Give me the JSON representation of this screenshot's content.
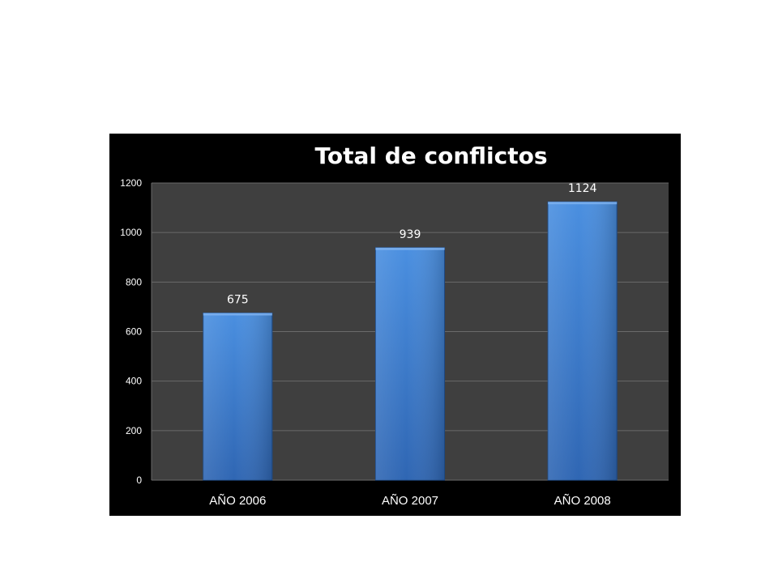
{
  "chart_data": {
    "type": "bar",
    "title": "Total de conflictos",
    "categories": [
      "AÑO 2006",
      "AÑO 2007",
      "AÑO 2008"
    ],
    "values": [
      675,
      939,
      1124
    ],
    "data_labels": [
      "675",
      "939",
      "1124"
    ],
    "y_ticks": [
      "0",
      "200",
      "400",
      "600",
      "800",
      "1000",
      "1200"
    ],
    "ylim": [
      0,
      1200
    ],
    "xlabel": "",
    "ylabel": "",
    "grid": true,
    "legend": "none",
    "colors": {
      "background": "#000000",
      "plot_area": "#3f3f3f",
      "gridline": "#6a6a6a",
      "bar_top": "#4a8fe0",
      "bar_bottom": "#2f66b3",
      "text": "#ffffff"
    }
  }
}
